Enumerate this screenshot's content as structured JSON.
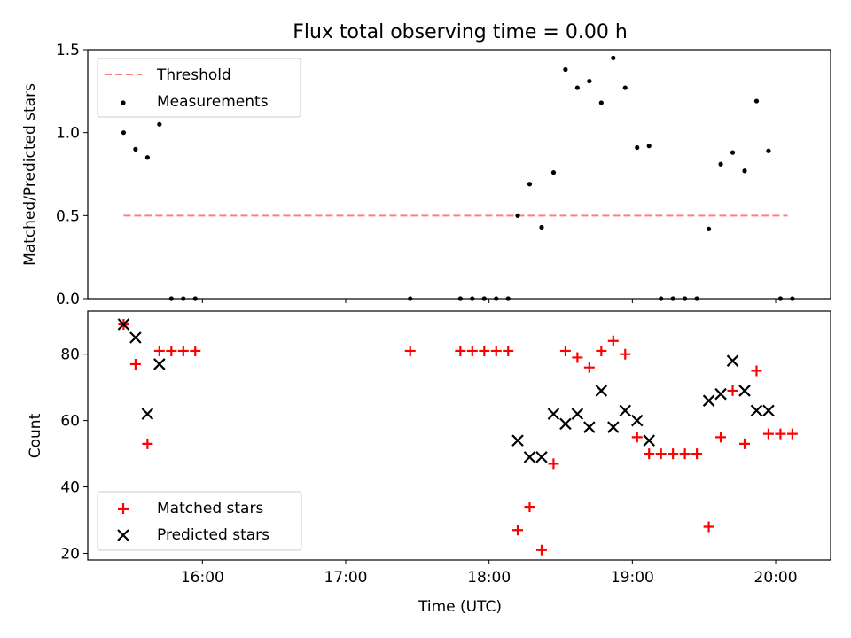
{
  "figure_title": "Flux total observing time = 0.00 h",
  "colors": {
    "threshold": "#ff7f7f",
    "measurement": "#000000",
    "matched": "#ff0000",
    "predicted": "#000000"
  },
  "chart_data": [
    {
      "type": "scatter",
      "title": "Flux total observing time = 0.00 h",
      "xlabel": "",
      "ylabel": "Matched/Predicted stars",
      "xlim": [
        "15:12",
        "20:23"
      ],
      "ylim": [
        0,
        1.5
      ],
      "yticks": [
        0.0,
        0.5,
        1.0,
        1.5
      ],
      "ytick_labels": [
        "0.0",
        "0.5",
        "1.0",
        "1.5"
      ],
      "xtick_labels": [],
      "grid": false,
      "legend": "upper left",
      "legend_entries": [
        "Threshold",
        "Measurements"
      ],
      "threshold": {
        "name": "Threshold",
        "y": 0.5,
        "x_start": "15:27",
        "x_end": "20:05"
      },
      "series": [
        {
          "name": "Measurements",
          "x": [
            "15:27",
            "15:32",
            "15:37",
            "15:42",
            "15:47",
            "15:52",
            "15:57",
            "17:27",
            "17:48",
            "17:53",
            "17:58",
            "18:03",
            "18:08",
            "18:12",
            "18:17",
            "18:22",
            "18:27",
            "18:32",
            "18:37",
            "18:42",
            "18:47",
            "18:52",
            "18:57",
            "19:02",
            "19:07",
            "19:12",
            "19:17",
            "19:22",
            "19:27",
            "19:32",
            "19:37",
            "19:42",
            "19:47",
            "19:52",
            "19:57",
            "20:02",
            "20:07"
          ],
          "y": [
            1.0,
            0.9,
            0.85,
            1.05,
            0,
            0,
            0,
            0,
            0,
            0,
            0,
            0,
            0,
            0.5,
            0.69,
            0.43,
            0.76,
            1.38,
            1.27,
            1.31,
            1.18,
            1.45,
            1.27,
            0.91,
            0.92,
            0,
            0,
            0,
            0,
            0.42,
            0.81,
            0.88,
            0.77,
            1.19,
            0.89,
            0,
            0
          ]
        }
      ]
    },
    {
      "type": "scatter",
      "title": "",
      "xlabel": "Time (UTC)",
      "ylabel": "Count",
      "xlim": [
        "15:12",
        "20:23"
      ],
      "ylim": [
        18,
        93
      ],
      "yticks": [
        20,
        40,
        60,
        80
      ],
      "ytick_labels": [
        "20",
        "40",
        "60",
        "80"
      ],
      "xticks": [
        "16:00",
        "17:00",
        "18:00",
        "19:00",
        "20:00"
      ],
      "xtick_labels": [
        "16:00",
        "17:00",
        "18:00",
        "19:00",
        "20:00"
      ],
      "grid": false,
      "legend": "lower left",
      "legend_entries": [
        "Matched stars",
        "Predicted stars"
      ],
      "series": [
        {
          "name": "Matched stars",
          "x": [
            "15:27",
            "15:32",
            "15:37",
            "15:42",
            "15:47",
            "15:52",
            "15:57",
            "17:27",
            "17:48",
            "17:53",
            "17:58",
            "18:03",
            "18:08",
            "18:12",
            "18:17",
            "18:22",
            "18:27",
            "18:32",
            "18:37",
            "18:42",
            "18:47",
            "18:52",
            "18:57",
            "19:02",
            "19:07",
            "19:12",
            "19:17",
            "19:22",
            "19:27",
            "19:32",
            "19:37",
            "19:42",
            "19:47",
            "19:52",
            "19:57",
            "20:02",
            "20:07"
          ],
          "y": [
            89,
            77,
            53,
            81,
            81,
            81,
            81,
            81,
            81,
            81,
            81,
            81,
            81,
            27,
            34,
            21,
            47,
            81,
            79,
            76,
            81,
            84,
            80,
            55,
            50,
            50,
            50,
            50,
            50,
            28,
            55,
            69,
            53,
            75,
            56,
            56,
            56
          ]
        },
        {
          "name": "Predicted stars",
          "x": [
            "15:27",
            "15:32",
            "15:37",
            "15:42",
            "18:12",
            "18:17",
            "18:22",
            "18:27",
            "18:32",
            "18:37",
            "18:42",
            "18:47",
            "18:52",
            "18:57",
            "19:02",
            "19:07",
            "19:32",
            "19:37",
            "19:42",
            "19:47",
            "19:52",
            "19:57"
          ],
          "y": [
            89,
            85,
            62,
            77,
            54,
            49,
            49,
            62,
            59,
            62,
            58,
            69,
            58,
            63,
            60,
            54,
            66,
            68,
            78,
            69,
            63,
            63
          ]
        }
      ]
    }
  ]
}
